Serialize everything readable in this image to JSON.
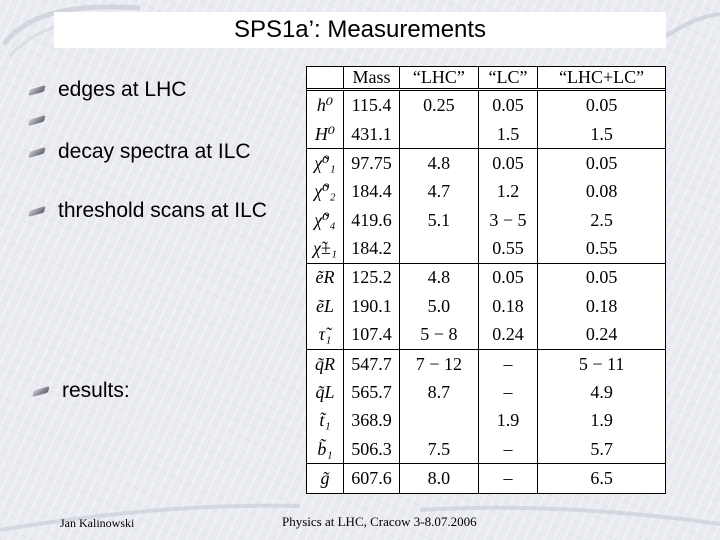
{
  "slide": {
    "title": "SPS1a’: Measurements",
    "bullets": [
      "edges at LHC",
      "",
      "decay spectra at ILC",
      "threshold scans at ILC",
      "results:"
    ],
    "footer_left": "Jan Kalinowski",
    "footer_center": "Physics at LHC, Cracow 3-8.07.2006"
  },
  "table": {
    "headers": [
      "",
      "Mass",
      "“LHC”",
      "“LC”",
      "“LHC+LC”"
    ],
    "rows": [
      {
        "sym": "h⁰",
        "mass": "115.4",
        "lhc": "0.25",
        "lc": "0.05",
        "combo": "0.05",
        "end": false
      },
      {
        "sym": "H⁰",
        "mass": "431.1",
        "lhc": "",
        "lc": "1.5",
        "combo": "1.5",
        "end": true
      },
      {
        "sym": "χ̃⁰₁",
        "mass": "97.75",
        "lhc": "4.8",
        "lc": "0.05",
        "combo": "0.05",
        "end": false
      },
      {
        "sym": "χ̃⁰₂",
        "mass": "184.4",
        "lhc": "4.7",
        "lc": "1.2",
        "combo": "0.08",
        "end": false
      },
      {
        "sym": "χ̃⁰₄",
        "mass": "419.6",
        "lhc": "5.1",
        "lc": "3 − 5",
        "combo": "2.5",
        "end": false
      },
      {
        "sym": "χ̃±₁",
        "mass": "184.2",
        "lhc": "",
        "lc": "0.55",
        "combo": "0.55",
        "end": true
      },
      {
        "sym": "ẽR",
        "mass": "125.2",
        "lhc": "4.8",
        "lc": "0.05",
        "combo": "0.05",
        "end": false
      },
      {
        "sym": "ẽL",
        "mass": "190.1",
        "lhc": "5.0",
        "lc": "0.18",
        "combo": "0.18",
        "end": false
      },
      {
        "sym": "τ̃₁",
        "mass": "107.4",
        "lhc": "5 − 8",
        "lc": "0.24",
        "combo": "0.24",
        "end": true
      },
      {
        "sym": "q̃R",
        "mass": "547.7",
        "lhc": "7 − 12",
        "lc": "–",
        "combo": "5 − 11",
        "end": false
      },
      {
        "sym": "q̃L",
        "mass": "565.7",
        "lhc": "8.7",
        "lc": "–",
        "combo": "4.9",
        "end": false
      },
      {
        "sym": "t̃₁",
        "mass": "368.9",
        "lhc": "",
        "lc": "1.9",
        "combo": "1.9",
        "end": false
      },
      {
        "sym": "b̃₁",
        "mass": "506.3",
        "lhc": "7.5",
        "lc": "–",
        "combo": "5.7",
        "end": true
      },
      {
        "sym": "g̃",
        "mass": "607.6",
        "lhc": "8.0",
        "lc": "–",
        "combo": "6.5",
        "end": false
      }
    ]
  }
}
